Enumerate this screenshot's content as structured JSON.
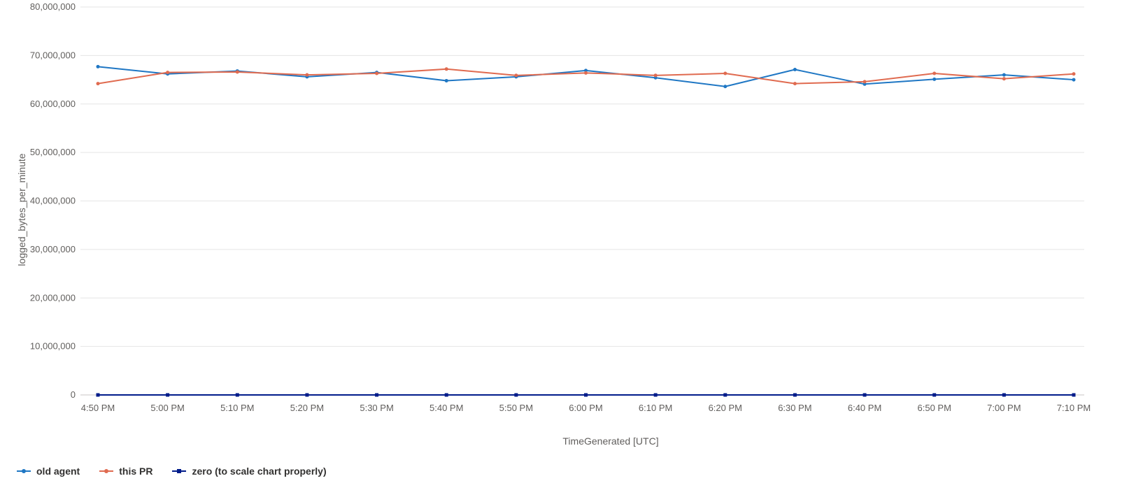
{
  "chart_data": {
    "type": "line",
    "xlabel": "TimeGenerated [UTC]",
    "ylabel": "logged_bytes_per_minute",
    "ylim": [
      0,
      80000000
    ],
    "yticks": [
      0,
      10000000,
      20000000,
      30000000,
      40000000,
      50000000,
      60000000,
      70000000,
      80000000
    ],
    "ytick_labels": [
      "0",
      "10,000,000",
      "20,000,000",
      "30,000,000",
      "40,000,000",
      "50,000,000",
      "60,000,000",
      "70,000,000",
      "80,000,000"
    ],
    "categories": [
      "4:50 PM",
      "5:00 PM",
      "5:10 PM",
      "5:20 PM",
      "5:30 PM",
      "5:40 PM",
      "5:50 PM",
      "6:00 PM",
      "6:10 PM",
      "6:20 PM",
      "6:30 PM",
      "6:40 PM",
      "6:50 PM",
      "7:00 PM",
      "7:10 PM"
    ],
    "grid": true,
    "legend_position": "bottom-left",
    "series": [
      {
        "name": "old agent",
        "color": "#1f77c4",
        "marker": "circle",
        "values": [
          67700000,
          66200000,
          66800000,
          65600000,
          66500000,
          64800000,
          65600000,
          66900000,
          65400000,
          63600000,
          67100000,
          64100000,
          65100000,
          66000000,
          65000000
        ]
      },
      {
        "name": "this PR",
        "color": "#e06b50",
        "marker": "circle",
        "values": [
          64200000,
          66500000,
          66600000,
          66000000,
          66300000,
          67200000,
          65900000,
          66400000,
          65900000,
          66300000,
          64200000,
          64600000,
          66300000,
          65200000,
          66200000
        ]
      },
      {
        "name": "zero (to scale chart properly)",
        "color": "#001b8a",
        "marker": "square",
        "values": [
          0,
          0,
          0,
          0,
          0,
          0,
          0,
          0,
          0,
          0,
          0,
          0,
          0,
          0,
          0
        ]
      }
    ]
  }
}
